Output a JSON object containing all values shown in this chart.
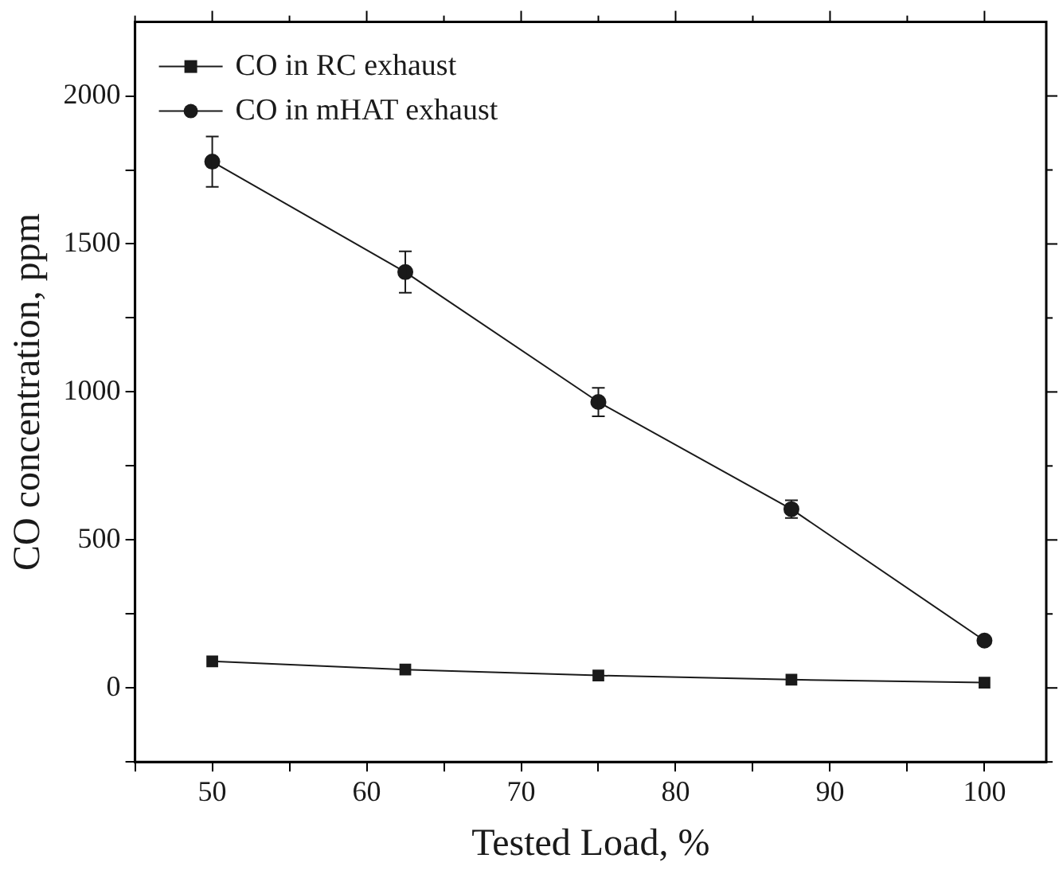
{
  "chart_data": {
    "type": "line",
    "xlabel": "Tested Load, %",
    "ylabel": "CO concentration, ppm",
    "x": [
      50,
      62.5,
      75,
      87.5,
      100
    ],
    "series": [
      {
        "name": "CO in RC exhaust",
        "color": "#1a1a1a",
        "marker": "square",
        "values": [
          90,
          62,
          42,
          28,
          18
        ]
      },
      {
        "name": "CO in mHAT exhaust",
        "color": "#1a1a1a",
        "marker": "circle",
        "values": [
          1778,
          1405,
          966,
          604,
          160
        ],
        "errors": [
          85,
          70,
          48,
          30,
          null
        ]
      }
    ],
    "xlim": [
      45,
      104
    ],
    "xticks": [
      {
        "value": 45,
        "label": null
      },
      50,
      {
        "value": 55,
        "label": null
      },
      60,
      {
        "value": 65,
        "label": null
      },
      70,
      {
        "value": 75,
        "label": null
      },
      80,
      {
        "value": 85,
        "label": null
      },
      90,
      {
        "value": 95,
        "label": null
      },
      100
    ],
    "ylim": [
      -250,
      2250
    ],
    "yticks": [
      {
        "value": -250,
        "label": null
      },
      0,
      {
        "value": 250,
        "label": null
      },
      500,
      {
        "value": 750,
        "label": null
      },
      1000,
      {
        "value": 1250,
        "label": null
      },
      1500,
      {
        "value": 1750,
        "label": null
      },
      2000
    ],
    "legend": "top left",
    "grid": false
  }
}
